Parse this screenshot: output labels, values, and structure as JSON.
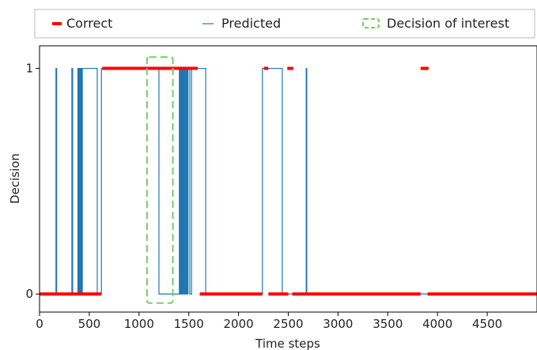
{
  "chart_data": {
    "type": "line",
    "xlabel": "Time steps",
    "ylabel": "Decision",
    "xlim": [
      0,
      5000
    ],
    "ylim": [
      -0.08,
      1.1
    ],
    "xticks": [
      0,
      500,
      1000,
      1500,
      2000,
      2500,
      3000,
      3500,
      4000,
      4500
    ],
    "xtick_labels": [
      "0",
      "500",
      "1000",
      "1500",
      "2000",
      "2500",
      "3000",
      "3500",
      "4000",
      "4500"
    ],
    "yticks": [
      0,
      1
    ],
    "ytick_labels": [
      "0",
      "1"
    ],
    "legend": {
      "placement": "top",
      "entries": [
        {
          "label": "Correct",
          "style": "thick-red-dashes",
          "color": "#ff0000"
        },
        {
          "label": "Predicted",
          "style": "thin-blue-line",
          "color": "#1f77b4"
        },
        {
          "label": "Decision of interest",
          "style": "green-dashed-box",
          "color": "#77cc66"
        }
      ]
    },
    "series": [
      {
        "name": "Correct",
        "color": "#ff0000",
        "segments": [
          {
            "y": 0,
            "x": [
              0,
              620
            ]
          },
          {
            "y": 1,
            "x": [
              630,
              1590
            ]
          },
          {
            "y": 0,
            "x": [
              1610,
              2240
            ]
          },
          {
            "y": 1,
            "x": [
              2255,
              2300
            ]
          },
          {
            "y": 0,
            "x": [
              2300,
              2500
            ]
          },
          {
            "y": 1,
            "x": [
              2490,
              2550
            ]
          },
          {
            "y": 0,
            "x": [
              2540,
              3830
            ]
          },
          {
            "y": 1,
            "x": [
              3830,
              3910
            ]
          },
          {
            "y": 0,
            "x": [
              3900,
              5000
            ]
          }
        ]
      },
      {
        "name": "Predicted",
        "color": "#1f77b4",
        "points": [
          [
            0,
            0
          ],
          [
            165,
            0
          ],
          [
            165,
            1
          ],
          [
            172,
            1
          ],
          [
            172,
            0
          ],
          [
            325,
            0
          ],
          [
            325,
            1
          ],
          [
            333,
            1
          ],
          [
            333,
            0
          ],
          [
            385,
            0
          ],
          [
            385,
            1
          ],
          [
            390,
            1
          ],
          [
            390,
            0
          ],
          [
            396,
            0
          ],
          [
            396,
            1
          ],
          [
            401,
            1
          ],
          [
            401,
            0
          ],
          [
            405,
            0
          ],
          [
            405,
            1
          ],
          [
            410,
            1
          ],
          [
            410,
            0
          ],
          [
            414,
            0
          ],
          [
            414,
            1
          ],
          [
            418,
            1
          ],
          [
            418,
            0
          ],
          [
            422,
            0
          ],
          [
            422,
            1
          ],
          [
            426,
            1
          ],
          [
            426,
            0
          ],
          [
            430,
            0
          ],
          [
            430,
            1
          ],
          [
            580,
            1
          ],
          [
            580,
            0
          ],
          [
            622,
            0
          ],
          [
            622,
            1
          ],
          [
            1200,
            1
          ],
          [
            1200,
            0
          ],
          [
            1405,
            0
          ],
          [
            1405,
            1
          ],
          [
            1410,
            1
          ],
          [
            1410,
            0
          ],
          [
            1418,
            0
          ],
          [
            1418,
            1
          ],
          [
            1423,
            1
          ],
          [
            1423,
            0
          ],
          [
            1430,
            0
          ],
          [
            1430,
            1
          ],
          [
            1435,
            1
          ],
          [
            1435,
            0
          ],
          [
            1442,
            0
          ],
          [
            1442,
            1
          ],
          [
            1447,
            1
          ],
          [
            1447,
            0
          ],
          [
            1455,
            0
          ],
          [
            1455,
            1
          ],
          [
            1460,
            1
          ],
          [
            1460,
            0
          ],
          [
            1468,
            0
          ],
          [
            1468,
            1
          ],
          [
            1473,
            1
          ],
          [
            1473,
            0
          ],
          [
            1480,
            0
          ],
          [
            1480,
            1
          ],
          [
            1485,
            1
          ],
          [
            1485,
            0
          ],
          [
            1492,
            0
          ],
          [
            1492,
            1
          ],
          [
            1510,
            1
          ],
          [
            1510,
            0
          ],
          [
            1528,
            0
          ],
          [
            1528,
            1
          ],
          [
            1670,
            1
          ],
          [
            1670,
            0
          ],
          [
            2240,
            0
          ],
          [
            2240,
            1
          ],
          [
            2440,
            1
          ],
          [
            2440,
            0
          ],
          [
            2680,
            0
          ],
          [
            2680,
            1
          ],
          [
            2686,
            1
          ],
          [
            2686,
            0
          ],
          [
            5000,
            0
          ]
        ]
      }
    ],
    "annotations": [
      {
        "type": "dashed-box",
        "label": "Decision of interest",
        "color": "#77cc66",
        "x": [
          1080,
          1340
        ],
        "y": [
          -0.04,
          1.05
        ]
      }
    ],
    "grid": false
  }
}
